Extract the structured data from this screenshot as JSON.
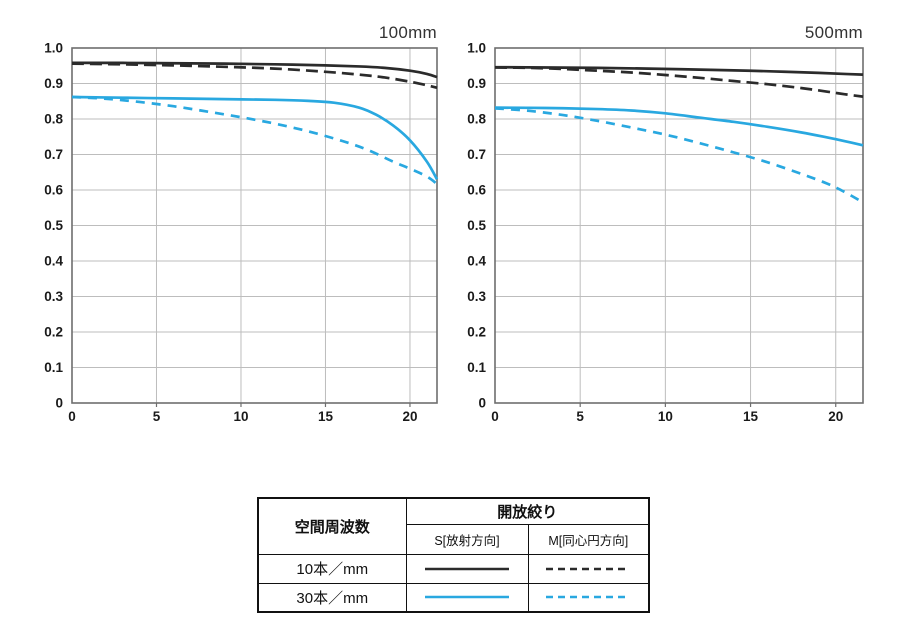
{
  "colors": {
    "black": "#2b2b2b",
    "blue": "#29a8e0",
    "grid": "#bdbdbd",
    "plot_border": "#6e6e6e",
    "text": "#1a1a1a",
    "table_border": "#111111"
  },
  "chart_data": [
    {
      "type": "line",
      "title": "100mm",
      "xlabel": "",
      "ylabel": "",
      "xlim": [
        0,
        21.6
      ],
      "ylim": [
        0,
        1.0
      ],
      "grid": true,
      "x_ticks": [
        0,
        5,
        10,
        15,
        20
      ],
      "y_tick_labels": [
        "0",
        "0.1",
        "0.2",
        "0.3",
        "0.4",
        "0.5",
        "0.6",
        "0.7",
        "0.8",
        "0.9",
        "1.0"
      ],
      "series": [
        {
          "name": "S[放射方向] 10本/mm",
          "color": "black",
          "style": "solid",
          "points": [
            [
              0,
              0.958
            ],
            [
              3,
              0.958
            ],
            [
              6,
              0.957
            ],
            [
              9,
              0.956
            ],
            [
              12,
              0.954
            ],
            [
              15,
              0.951
            ],
            [
              17,
              0.948
            ],
            [
              18.5,
              0.944
            ],
            [
              20,
              0.936
            ],
            [
              21,
              0.927
            ],
            [
              21.6,
              0.918
            ]
          ]
        },
        {
          "name": "M[同心円方向] 10本/mm",
          "color": "black",
          "style": "dashed",
          "points": [
            [
              0,
              0.956
            ],
            [
              3,
              0.954
            ],
            [
              6,
              0.951
            ],
            [
              9,
              0.947
            ],
            [
              12,
              0.942
            ],
            [
              15,
              0.933
            ],
            [
              17,
              0.925
            ],
            [
              18.5,
              0.917
            ],
            [
              20,
              0.905
            ],
            [
              21,
              0.895
            ],
            [
              21.6,
              0.888
            ]
          ]
        },
        {
          "name": "S[放射方向] 30本/mm",
          "color": "blue",
          "style": "solid",
          "points": [
            [
              0,
              0.862
            ],
            [
              3,
              0.86
            ],
            [
              6,
              0.858
            ],
            [
              9,
              0.856
            ],
            [
              12,
              0.854
            ],
            [
              14,
              0.851
            ],
            [
              15.5,
              0.846
            ],
            [
              17,
              0.832
            ],
            [
              18,
              0.812
            ],
            [
              19,
              0.782
            ],
            [
              20,
              0.74
            ],
            [
              21,
              0.68
            ],
            [
              21.6,
              0.63
            ]
          ]
        },
        {
          "name": "M[同心円方向] 30本/mm",
          "color": "blue",
          "style": "dashed",
          "points": [
            [
              0,
              0.862
            ],
            [
              2,
              0.857
            ],
            [
              4,
              0.848
            ],
            [
              6,
              0.836
            ],
            [
              8,
              0.821
            ],
            [
              10,
              0.805
            ],
            [
              12,
              0.787
            ],
            [
              14,
              0.765
            ],
            [
              16,
              0.738
            ],
            [
              17.5,
              0.713
            ],
            [
              19,
              0.68
            ],
            [
              20,
              0.66
            ],
            [
              21,
              0.638
            ],
            [
              21.6,
              0.617
            ]
          ]
        }
      ]
    },
    {
      "type": "line",
      "title": "500mm",
      "xlabel": "",
      "ylabel": "",
      "xlim": [
        0,
        21.6
      ],
      "ylim": [
        0,
        1.0
      ],
      "grid": true,
      "x_ticks": [
        0,
        5,
        10,
        15,
        20
      ],
      "y_tick_labels": [
        "0",
        "0.1",
        "0.2",
        "0.3",
        "0.4",
        "0.5",
        "0.6",
        "0.7",
        "0.8",
        "0.9",
        "1.0"
      ],
      "series": [
        {
          "name": "S[放射方向] 10本/mm",
          "color": "black",
          "style": "solid",
          "points": [
            [
              0,
              0.946
            ],
            [
              3,
              0.945
            ],
            [
              6,
              0.944
            ],
            [
              9,
              0.942
            ],
            [
              12,
              0.939
            ],
            [
              15,
              0.936
            ],
            [
              17,
              0.933
            ],
            [
              19,
              0.93
            ],
            [
              20.5,
              0.927
            ],
            [
              21.6,
              0.925
            ]
          ]
        },
        {
          "name": "M[同心円方向] 10本/mm",
          "color": "black",
          "style": "dashed",
          "points": [
            [
              0,
              0.945
            ],
            [
              2,
              0.944
            ],
            [
              4,
              0.941
            ],
            [
              6,
              0.936
            ],
            [
              8,
              0.931
            ],
            [
              10,
              0.924
            ],
            [
              12,
              0.916
            ],
            [
              14,
              0.907
            ],
            [
              16,
              0.898
            ],
            [
              18,
              0.887
            ],
            [
              19.5,
              0.877
            ],
            [
              20.5,
              0.87
            ],
            [
              21.6,
              0.863
            ]
          ]
        },
        {
          "name": "S[放射方向] 30本/mm",
          "color": "blue",
          "style": "solid",
          "points": [
            [
              0,
              0.832
            ],
            [
              3,
              0.831
            ],
            [
              6,
              0.828
            ],
            [
              8,
              0.824
            ],
            [
              10,
              0.816
            ],
            [
              12,
              0.804
            ],
            [
              14,
              0.792
            ],
            [
              16,
              0.778
            ],
            [
              18,
              0.762
            ],
            [
              19.5,
              0.748
            ],
            [
              20.5,
              0.738
            ],
            [
              21.6,
              0.726
            ]
          ]
        },
        {
          "name": "M[同心円方向] 30本/mm",
          "color": "blue",
          "style": "dashed",
          "points": [
            [
              0,
              0.83
            ],
            [
              2,
              0.823
            ],
            [
              4,
              0.811
            ],
            [
              6,
              0.795
            ],
            [
              8,
              0.776
            ],
            [
              10,
              0.756
            ],
            [
              12,
              0.732
            ],
            [
              14,
              0.706
            ],
            [
              16,
              0.678
            ],
            [
              18,
              0.645
            ],
            [
              19.5,
              0.618
            ],
            [
              20.5,
              0.595
            ],
            [
              21.6,
              0.565
            ]
          ]
        }
      ]
    }
  ],
  "legend_table": {
    "header_col": "空間周波数",
    "header_group": "開放絞り",
    "sub_headers": [
      "S[放射方向]",
      "M[同心円方向]"
    ],
    "rows": [
      {
        "label": "10本／mm",
        "swatches": [
          {
            "color": "black",
            "style": "solid"
          },
          {
            "color": "black",
            "style": "dashed"
          }
        ]
      },
      {
        "label": "30本／mm",
        "swatches": [
          {
            "color": "blue",
            "style": "solid"
          },
          {
            "color": "blue",
            "style": "dashed"
          }
        ]
      }
    ]
  }
}
